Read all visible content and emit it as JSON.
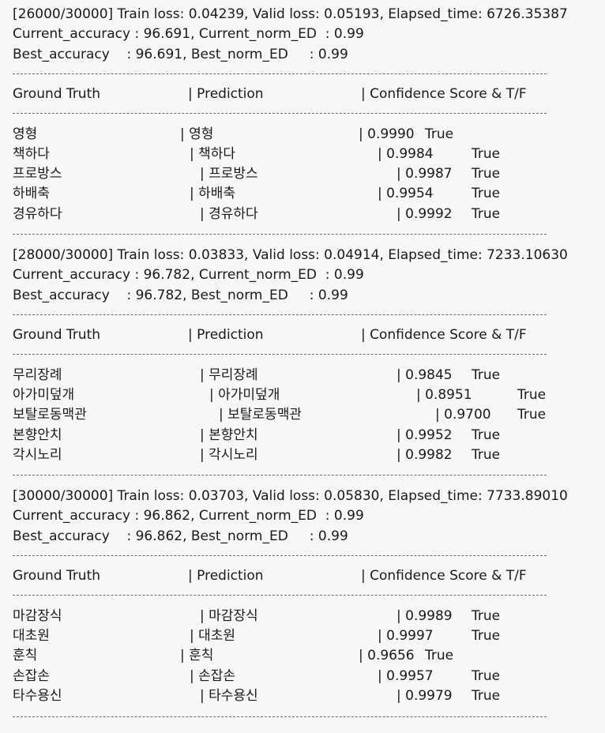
{
  "header_labels": {
    "ground_truth": "Ground Truth",
    "prediction": "| Prediction",
    "confidence": "| Confidence Score & T/F"
  },
  "blocks": [
    {
      "step_line": "[26000/30000] Train loss: 0.04239, Valid loss: 0.05193, Elapsed_time: 6726.35387",
      "current_line": "Current_accuracy : 96.691, Current_norm_ED  : 0.99",
      "best_line": "Best_accuracy    : 96.691, Best_norm_ED     : 0.99",
      "rows": [
        {
          "gt": "영형",
          "pred": "| 영형",
          "score": "| 0.9990",
          "tf": "True"
        },
        {
          "gt": "책하다",
          "pred": "| 책하다",
          "score": "| 0.9984",
          "tf": "True"
        },
        {
          "gt": "프로방스",
          "pred": "| 프로방스",
          "score": "| 0.9987",
          "tf": "True"
        },
        {
          "gt": "하배축",
          "pred": "| 하배축",
          "score": "| 0.9954",
          "tf": "True"
        },
        {
          "gt": "경유하다",
          "pred": "| 경유하다",
          "score": "| 0.9992",
          "tf": "True"
        }
      ]
    },
    {
      "step_line": "[28000/30000] Train loss: 0.03833, Valid loss: 0.04914, Elapsed_time: 7233.10630",
      "current_line": "Current_accuracy : 96.782, Current_norm_ED  : 0.99",
      "best_line": "Best_accuracy    : 96.782, Best_norm_ED     : 0.99",
      "rows": [
        {
          "gt": "무리장례",
          "pred": "| 무리장례",
          "score": "| 0.9845",
          "tf": "True"
        },
        {
          "gt": "아가미덮개",
          "pred": "| 아가미덮개",
          "score": "| 0.8951",
          "tf": "True"
        },
        {
          "gt": "보탈로동맥관",
          "pred": "| 보탈로동맥관",
          "score": "| 0.9700",
          "tf": "True"
        },
        {
          "gt": "본향안치",
          "pred": "| 본향안치",
          "score": "| 0.9952",
          "tf": "True"
        },
        {
          "gt": "각시노리",
          "pred": "| 각시노리",
          "score": "| 0.9982",
          "tf": "True"
        }
      ]
    },
    {
      "step_line": "[30000/30000] Train loss: 0.03703, Valid loss: 0.05830, Elapsed_time: 7733.89010",
      "current_line": "Current_accuracy : 96.862, Current_norm_ED  : 0.99",
      "best_line": "Best_accuracy    : 96.862, Best_norm_ED     : 0.99",
      "rows": [
        {
          "gt": "마감장식",
          "pred": "| 마감장식",
          "score": "| 0.9989",
          "tf": "True"
        },
        {
          "gt": "대초원",
          "pred": "| 대초원",
          "score": "| 0.9997",
          "tf": "True"
        },
        {
          "gt": "훈칙",
          "pred": "| 훈칙",
          "score": "| 0.9656",
          "tf": "True"
        },
        {
          "gt": "손잡손",
          "pred": "| 손잡손",
          "score": "| 0.9957",
          "tf": "True"
        },
        {
          "gt": "타수용신",
          "pred": "| 타수용신",
          "score": "| 0.9979",
          "tf": "True"
        }
      ]
    }
  ]
}
